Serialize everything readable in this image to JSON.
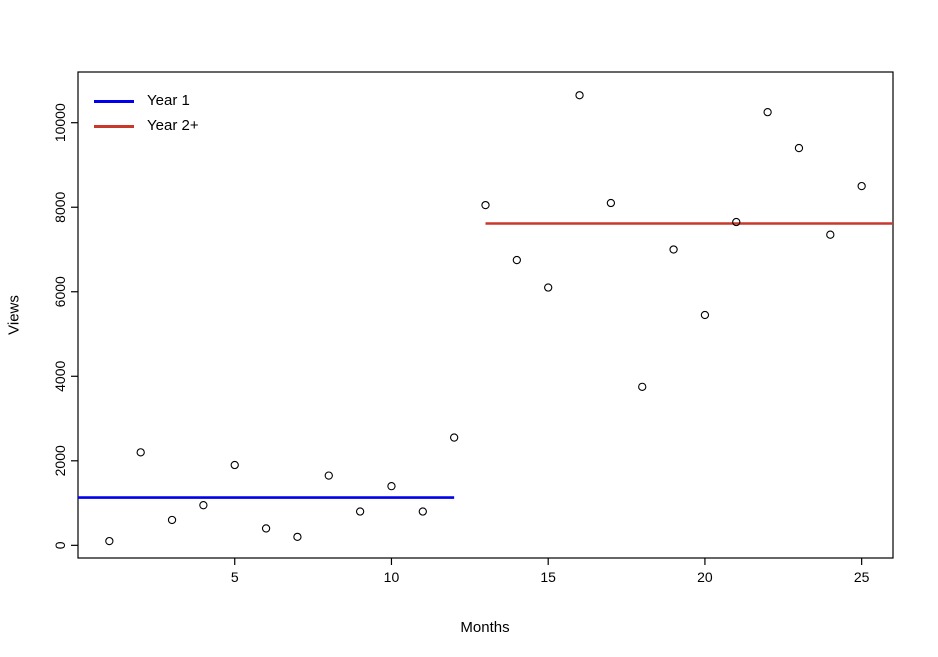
{
  "chart_data": {
    "type": "scatter",
    "title": "",
    "xlabel": "Months",
    "ylabel": "Views",
    "x": [
      1,
      2,
      3,
      4,
      5,
      6,
      7,
      8,
      9,
      10,
      11,
      12,
      13,
      14,
      15,
      16,
      17,
      18,
      19,
      20,
      21,
      22,
      23,
      24,
      25
    ],
    "y": [
      100,
      2200,
      600,
      950,
      1900,
      400,
      200,
      1650,
      800,
      1400,
      800,
      2550,
      8050,
      6750,
      6100,
      10650,
      8100,
      3750,
      7000,
      5450,
      7650,
      10250,
      9400,
      7350,
      8500
    ],
    "xlim": [
      0,
      26
    ],
    "ylim": [
      -300,
      11200
    ],
    "x_ticks": [
      5,
      10,
      15,
      20,
      25
    ],
    "y_ticks": [
      0,
      2000,
      4000,
      6000,
      8000,
      10000
    ],
    "point_style": "open-circle",
    "grid": false,
    "legend": {
      "position": "top-left",
      "entries": [
        {
          "label": "Year 1",
          "color": "#0000EE",
          "type": "line"
        },
        {
          "label": "Year 2+",
          "color": "#C8392B",
          "type": "line"
        }
      ]
    },
    "mean_lines": [
      {
        "series": "Year 1",
        "color": "#0000EE",
        "y": 1129,
        "x_start": 0,
        "x_end": 12
      },
      {
        "series": "Year 2+",
        "color": "#C8392B",
        "y": 7615,
        "x_start": 13,
        "x_end": 26
      }
    ]
  }
}
